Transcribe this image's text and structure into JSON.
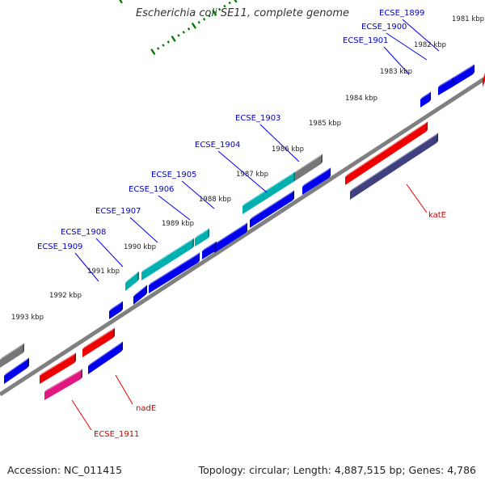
{
  "title": "Escherichia coli SE11, complete genome",
  "footer": {
    "accession": "Accession: NC_011415",
    "summary": "Topology: circular; Length: 4,887,515 bp; Genes: 4,786"
  },
  "colors": {
    "blue": "#0000ee",
    "red": "#ee0000",
    "teal": "#00b0b0",
    "gray": "#777777",
    "pink": "#e01880",
    "navy": "#404080",
    "tick": "#007a00",
    "gene_label_blue": "#0000cc",
    "gene_label_red": "#cc0000"
  },
  "kbp_labels": [
    "1981 kbp",
    "1982 kbp",
    "1983 kbp",
    "1984 kbp",
    "1985 kbp",
    "1986 kbp",
    "1987 kbp",
    "1988 kbp",
    "1989 kbp",
    "1990 kbp",
    "1991 kbp",
    "1992 kbp",
    "1993 kbp"
  ],
  "gene_labels": [
    "ECSE_1899",
    "ECSE_1900",
    "ECSE_1901",
    "ECSE_1903",
    "ECSE_1904",
    "ECSE_1905",
    "ECSE_1906",
    "ECSE_1907",
    "ECSE_1908",
    "ECSE_1909",
    "katE",
    "nadE",
    "ECSE_1911"
  ]
}
